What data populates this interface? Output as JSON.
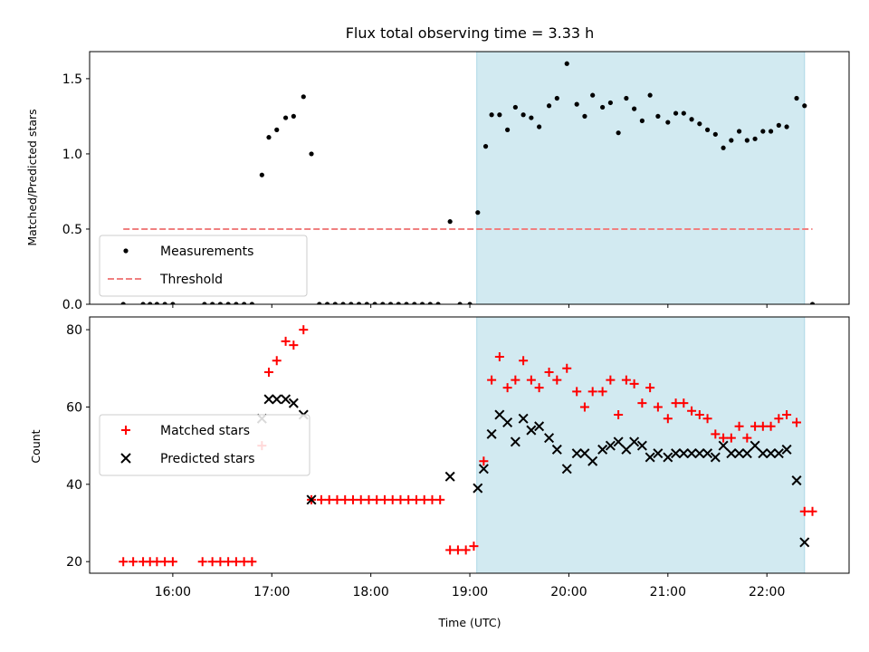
{
  "figure": {
    "title": "Flux total observing time = 3.33 h",
    "xlabel": "Time (UTC)",
    "xticks": [
      {
        "h": 16,
        "label": "16:00"
      },
      {
        "h": 17,
        "label": "17:00"
      },
      {
        "h": 18,
        "label": "18:00"
      },
      {
        "h": 19,
        "label": "19:00"
      },
      {
        "h": 20,
        "label": "20:00"
      },
      {
        "h": 21,
        "label": "21:00"
      },
      {
        "h": 22,
        "label": "22:00"
      }
    ],
    "xlim": [
      15.16,
      22.83
    ],
    "shade_range": [
      19.07,
      22.38
    ],
    "colors": {
      "shade": "#add8e6",
      "threshold": "#f08080",
      "matched": "#ff0000",
      "predicted": "#000000",
      "measure": "#000000"
    }
  },
  "chart_data": [
    {
      "type": "scatter",
      "ylabel": "Matched/Predicted stars",
      "ylim": [
        0,
        1.68
      ],
      "yticks": [
        0.0,
        0.5,
        1.0,
        1.5
      ],
      "legend_position": "lower-left",
      "series": [
        {
          "name": "Measurements",
          "marker": "dot",
          "x": [
            15.5,
            15.7,
            15.77,
            15.84,
            15.92,
            16.0,
            16.32,
            16.4,
            16.48,
            16.56,
            16.64,
            16.72,
            16.8,
            16.9,
            16.97,
            17.05,
            17.14,
            17.22,
            17.32,
            17.4,
            17.48,
            17.56,
            17.64,
            17.72,
            17.8,
            17.88,
            17.96,
            18.04,
            18.12,
            18.2,
            18.28,
            18.36,
            18.44,
            18.52,
            18.6,
            18.68,
            18.8,
            18.9,
            19.0,
            19.08,
            19.16,
            19.22,
            19.3,
            19.38,
            19.46,
            19.54,
            19.62,
            19.7,
            19.8,
            19.88,
            19.98,
            20.08,
            20.16,
            20.24,
            20.34,
            20.42,
            20.5,
            20.58,
            20.66,
            20.74,
            20.82,
            20.9,
            21.0,
            21.08,
            21.16,
            21.24,
            21.32,
            21.4,
            21.48,
            21.56,
            21.64,
            21.72,
            21.8,
            21.88,
            21.96,
            22.04,
            22.12,
            22.2,
            22.3,
            22.38,
            22.46
          ],
          "y": [
            0,
            0,
            0,
            0,
            0,
            0,
            0,
            0,
            0,
            0,
            0,
            0,
            0,
            0.86,
            1.11,
            1.16,
            1.24,
            1.25,
            1.38,
            1.0,
            0,
            0,
            0,
            0,
            0,
            0,
            0,
            0,
            0,
            0,
            0,
            0,
            0,
            0,
            0,
            0,
            0.55,
            0,
            0,
            0.61,
            1.05,
            1.26,
            1.26,
            1.16,
            1.31,
            1.26,
            1.24,
            1.18,
            1.32,
            1.37,
            1.6,
            1.33,
            1.25,
            1.39,
            1.31,
            1.34,
            1.14,
            1.37,
            1.3,
            1.22,
            1.39,
            1.25,
            1.21,
            1.27,
            1.27,
            1.23,
            1.2,
            1.16,
            1.13,
            1.04,
            1.09,
            1.15,
            1.09,
            1.1,
            1.15,
            1.15,
            1.19,
            1.18,
            1.37,
            1.32,
            0
          ]
        },
        {
          "name": "Threshold",
          "marker": "dashed-line",
          "x": [
            15.5,
            22.46
          ],
          "y": [
            0.5,
            0.5
          ]
        }
      ]
    },
    {
      "type": "scatter",
      "ylabel": "Count",
      "ylim": [
        17,
        83.3
      ],
      "yticks": [
        20,
        40,
        60,
        80
      ],
      "legend_position": "center-left",
      "series": [
        {
          "name": "Matched stars",
          "marker": "plus",
          "x": [
            15.5,
            15.6,
            15.7,
            15.77,
            15.84,
            15.92,
            16.0,
            16.3,
            16.4,
            16.48,
            16.56,
            16.64,
            16.72,
            16.8,
            16.9,
            16.97,
            17.05,
            17.14,
            17.22,
            17.32,
            17.4,
            17.5,
            17.58,
            17.66,
            17.74,
            17.82,
            17.9,
            17.98,
            18.06,
            18.14,
            18.22,
            18.3,
            18.38,
            18.46,
            18.54,
            18.62,
            18.7,
            18.8,
            18.88,
            18.96,
            19.04,
            19.14,
            19.22,
            19.3,
            19.38,
            19.46,
            19.54,
            19.62,
            19.7,
            19.8,
            19.88,
            19.98,
            20.08,
            20.16,
            20.24,
            20.34,
            20.42,
            20.5,
            20.58,
            20.66,
            20.74,
            20.82,
            20.9,
            21.0,
            21.08,
            21.16,
            21.24,
            21.32,
            21.4,
            21.48,
            21.56,
            21.64,
            21.72,
            21.8,
            21.88,
            21.96,
            22.04,
            22.12,
            22.2,
            22.3,
            22.38,
            22.46
          ],
          "y": [
            20,
            20,
            20,
            20,
            20,
            20,
            20,
            20,
            20,
            20,
            20,
            20,
            20,
            20,
            50,
            69,
            72,
            77,
            76,
            80,
            36,
            36,
            36,
            36,
            36,
            36,
            36,
            36,
            36,
            36,
            36,
            36,
            36,
            36,
            36,
            36,
            36,
            23,
            23,
            23,
            24,
            46,
            67,
            73,
            65,
            67,
            72,
            67,
            65,
            69,
            67,
            70,
            64,
            60,
            64,
            64,
            67,
            58,
            67,
            66,
            61,
            65,
            60,
            57,
            61,
            61,
            59,
            58,
            57,
            53,
            52,
            52,
            55,
            52,
            55,
            55,
            55,
            57,
            58,
            56,
            33,
            33
          ]
        },
        {
          "name": "Predicted stars",
          "marker": "x",
          "x": [
            16.9,
            16.97,
            17.05,
            17.14,
            17.22,
            17.32,
            17.4,
            18.8,
            19.08,
            19.14,
            19.22,
            19.3,
            19.38,
            19.46,
            19.54,
            19.62,
            19.7,
            19.8,
            19.88,
            19.98,
            20.08,
            20.16,
            20.24,
            20.34,
            20.42,
            20.5,
            20.58,
            20.66,
            20.74,
            20.82,
            20.9,
            21.0,
            21.08,
            21.16,
            21.24,
            21.32,
            21.4,
            21.48,
            21.56,
            21.64,
            21.72,
            21.8,
            21.88,
            21.96,
            22.04,
            22.12,
            22.2,
            22.3,
            22.38
          ],
          "y": [
            57,
            62,
            62,
            62,
            61,
            58,
            36,
            42,
            39,
            44,
            53,
            58,
            56,
            51,
            57,
            54,
            55,
            52,
            49,
            44,
            48,
            48,
            46,
            49,
            50,
            51,
            49,
            51,
            50,
            47,
            48,
            47,
            48,
            48,
            48,
            48,
            48,
            47,
            50,
            48,
            48,
            48,
            50,
            48,
            48,
            48,
            49,
            41,
            25
          ]
        }
      ]
    }
  ]
}
